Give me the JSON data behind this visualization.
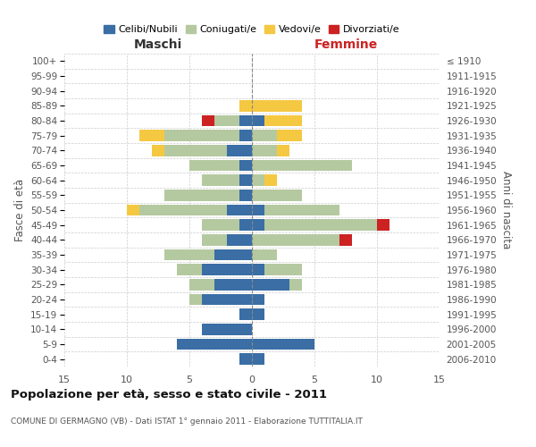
{
  "age_groups": [
    "0-4",
    "5-9",
    "10-14",
    "15-19",
    "20-24",
    "25-29",
    "30-34",
    "35-39",
    "40-44",
    "45-49",
    "50-54",
    "55-59",
    "60-64",
    "65-69",
    "70-74",
    "75-79",
    "80-84",
    "85-89",
    "90-94",
    "95-99",
    "100+"
  ],
  "birth_years": [
    "2006-2010",
    "2001-2005",
    "1996-2000",
    "1991-1995",
    "1986-1990",
    "1981-1985",
    "1976-1980",
    "1971-1975",
    "1966-1970",
    "1961-1965",
    "1956-1960",
    "1951-1955",
    "1946-1950",
    "1941-1945",
    "1936-1940",
    "1931-1935",
    "1926-1930",
    "1921-1925",
    "1916-1920",
    "1911-1915",
    "≤ 1910"
  ],
  "males": {
    "celibi": [
      1,
      6,
      4,
      1,
      4,
      3,
      4,
      3,
      2,
      1,
      2,
      1,
      1,
      1,
      2,
      1,
      1,
      0,
      0,
      0,
      0
    ],
    "coniugati": [
      0,
      0,
      0,
      0,
      1,
      2,
      2,
      4,
      2,
      3,
      7,
      6,
      3,
      4,
      5,
      6,
      2,
      0,
      0,
      0,
      0
    ],
    "vedovi": [
      0,
      0,
      0,
      0,
      0,
      0,
      0,
      0,
      0,
      0,
      1,
      0,
      0,
      0,
      1,
      2,
      0,
      1,
      0,
      0,
      0
    ],
    "divorziati": [
      0,
      0,
      0,
      0,
      0,
      0,
      0,
      0,
      0,
      0,
      0,
      0,
      0,
      0,
      0,
      0,
      1,
      0,
      0,
      0,
      0
    ]
  },
  "females": {
    "nubili": [
      1,
      5,
      0,
      1,
      1,
      3,
      1,
      0,
      0,
      1,
      1,
      0,
      0,
      0,
      0,
      0,
      1,
      0,
      0,
      0,
      0
    ],
    "coniugate": [
      0,
      0,
      0,
      0,
      0,
      1,
      3,
      2,
      7,
      9,
      6,
      4,
      1,
      8,
      2,
      2,
      0,
      0,
      0,
      0,
      0
    ],
    "vedove": [
      0,
      0,
      0,
      0,
      0,
      0,
      0,
      0,
      0,
      0,
      0,
      0,
      1,
      0,
      1,
      2,
      3,
      4,
      0,
      0,
      0
    ],
    "divorziate": [
      0,
      0,
      0,
      0,
      0,
      0,
      0,
      0,
      1,
      1,
      0,
      0,
      0,
      0,
      0,
      0,
      0,
      0,
      0,
      0,
      0
    ]
  },
  "colors": {
    "celibi_nubili": "#3a6ea5",
    "coniugati": "#b5c9a0",
    "vedovi": "#f5c842",
    "divorziati": "#cc2222"
  },
  "xlim": 15,
  "title": "Popolazione per età, sesso e stato civile - 2011",
  "subtitle": "COMUNE DI GERMAGNO (VB) - Dati ISTAT 1° gennaio 2011 - Elaborazione TUTTITALIA.IT",
  "xlabel_left": "Maschi",
  "xlabel_right": "Femmine",
  "ylabel_left": "Fasce di età",
  "ylabel_right": "Anni di nascita"
}
